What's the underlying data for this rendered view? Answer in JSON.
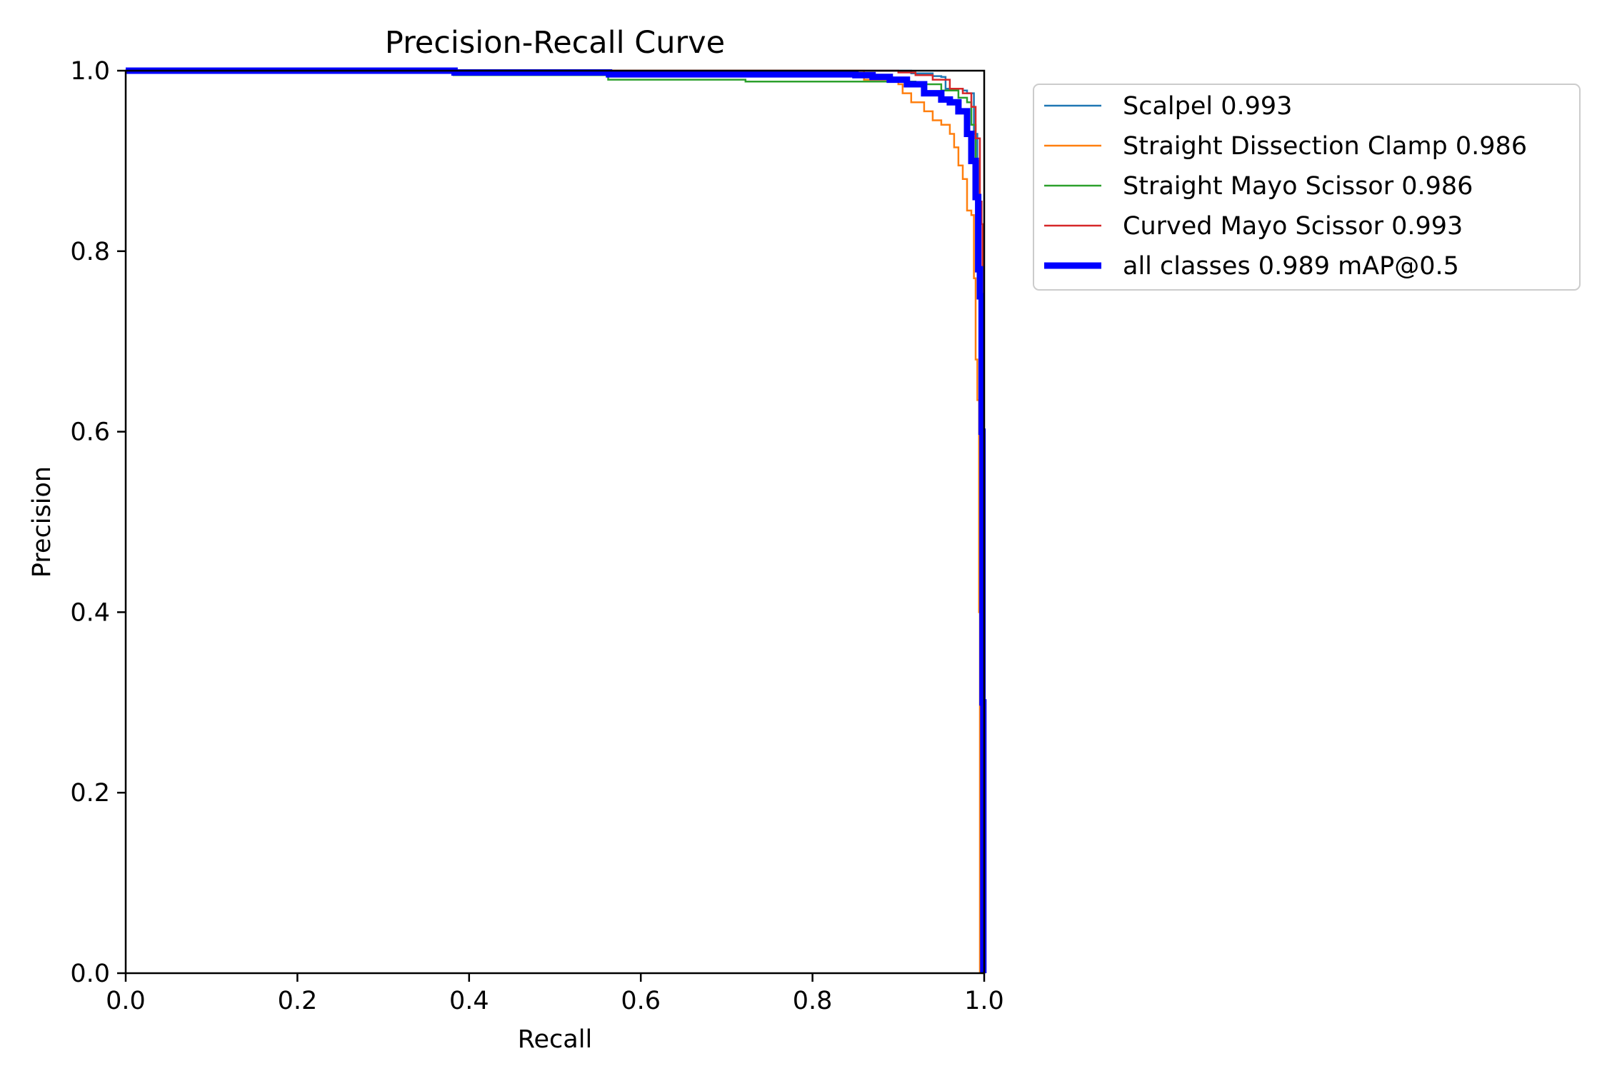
{
  "chart_data": {
    "type": "line",
    "title": "Precision-Recall Curve",
    "xlabel": "Recall",
    "ylabel": "Precision",
    "xlim": [
      0,
      1
    ],
    "ylim": [
      0,
      1
    ],
    "x_ticks": [
      "0.0",
      "0.2",
      "0.4",
      "0.6",
      "0.8",
      "1.0"
    ],
    "y_ticks": [
      "0.0",
      "0.2",
      "0.4",
      "0.6",
      "0.8",
      "1.0"
    ],
    "grid": false,
    "legend_position": "outside-top-right",
    "series": [
      {
        "name": "Scalpel 0.993",
        "color": "#1f77b4",
        "line_width": "thin",
        "points": [
          [
            0,
            1.0
          ],
          [
            0.38,
            1.0
          ],
          [
            0.9,
            1.0
          ],
          [
            0.915,
            0.997
          ],
          [
            0.93,
            0.997
          ],
          [
            0.94,
            0.994
          ],
          [
            0.95,
            0.993
          ],
          [
            0.955,
            0.98
          ],
          [
            0.975,
            0.978
          ],
          [
            0.98,
            0.975
          ],
          [
            0.988,
            0.93
          ],
          [
            0.992,
            0.85
          ],
          [
            0.995,
            0.72
          ],
          [
            0.997,
            0.5
          ],
          [
            0.998,
            0.25
          ],
          [
            0.999,
            0.0
          ]
        ]
      },
      {
        "name": "Straight Dissection Clamp 0.986",
        "color": "#ff7f0e",
        "line_width": "thin",
        "points": [
          [
            0,
            1.0
          ],
          [
            0.38,
            1.0
          ],
          [
            0.85,
            1.0
          ],
          [
            0.86,
            0.99
          ],
          [
            0.9,
            0.985
          ],
          [
            0.905,
            0.975
          ],
          [
            0.915,
            0.965
          ],
          [
            0.93,
            0.955
          ],
          [
            0.94,
            0.945
          ],
          [
            0.95,
            0.94
          ],
          [
            0.96,
            0.93
          ],
          [
            0.965,
            0.915
          ],
          [
            0.97,
            0.895
          ],
          [
            0.975,
            0.88
          ],
          [
            0.98,
            0.845
          ],
          [
            0.985,
            0.84
          ],
          [
            0.988,
            0.77
          ],
          [
            0.99,
            0.68
          ],
          [
            0.992,
            0.635
          ],
          [
            0.994,
            0.4
          ],
          [
            0.995,
            0.0
          ]
        ]
      },
      {
        "name": "Straight Mayo Scissor 0.986",
        "color": "#2ca02c",
        "line_width": "thin",
        "points": [
          [
            0,
            1.0
          ],
          [
            0.38,
            1.0
          ],
          [
            0.382,
            0.995
          ],
          [
            0.56,
            0.995
          ],
          [
            0.562,
            0.99
          ],
          [
            0.72,
            0.99
          ],
          [
            0.722,
            0.988
          ],
          [
            0.9,
            0.988
          ],
          [
            0.92,
            0.985
          ],
          [
            0.95,
            0.978
          ],
          [
            0.97,
            0.97
          ],
          [
            0.98,
            0.965
          ],
          [
            0.985,
            0.94
          ],
          [
            0.99,
            0.9
          ],
          [
            0.993,
            0.8
          ],
          [
            0.995,
            0.6
          ],
          [
            0.997,
            0.3
          ],
          [
            0.998,
            0.0
          ]
        ]
      },
      {
        "name": "Curved Mayo Scissor 0.993",
        "color": "#d62728",
        "line_width": "thin",
        "points": [
          [
            0,
            1.0
          ],
          [
            0.38,
            1.0
          ],
          [
            0.88,
            1.0
          ],
          [
            0.9,
            0.998
          ],
          [
            0.92,
            0.995
          ],
          [
            0.94,
            0.99
          ],
          [
            0.96,
            0.98
          ],
          [
            0.975,
            0.975
          ],
          [
            0.985,
            0.96
          ],
          [
            0.99,
            0.925
          ],
          [
            0.995,
            0.855
          ],
          [
            0.997,
            0.83
          ],
          [
            0.998,
            0.6
          ],
          [
            0.999,
            0.3
          ],
          [
            0.9995,
            0.0
          ]
        ]
      },
      {
        "name": "all classes 0.989 mAP@0.5",
        "color": "#0000ff",
        "line_width": "thick",
        "points": [
          [
            0,
            1.0
          ],
          [
            0.38,
            1.0
          ],
          [
            0.383,
            0.998
          ],
          [
            0.56,
            0.998
          ],
          [
            0.563,
            0.996
          ],
          [
            0.77,
            0.996
          ],
          [
            0.85,
            0.995
          ],
          [
            0.87,
            0.993
          ],
          [
            0.89,
            0.99
          ],
          [
            0.91,
            0.985
          ],
          [
            0.93,
            0.975
          ],
          [
            0.95,
            0.968
          ],
          [
            0.96,
            0.965
          ],
          [
            0.97,
            0.955
          ],
          [
            0.98,
            0.93
          ],
          [
            0.985,
            0.9
          ],
          [
            0.99,
            0.86
          ],
          [
            0.993,
            0.78
          ],
          [
            0.995,
            0.75
          ],
          [
            0.997,
            0.6
          ],
          [
            0.998,
            0.3
          ],
          [
            0.999,
            0.0
          ]
        ]
      }
    ]
  }
}
